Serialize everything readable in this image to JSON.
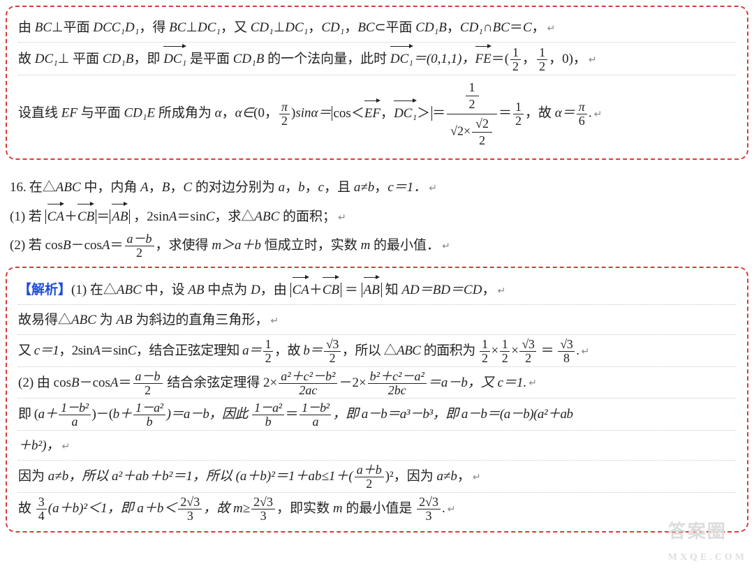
{
  "box1": {
    "line1_a": "由 ",
    "line1_b": "⊥平面 ",
    "line1_c": "，得 ",
    "line1_d": "⊥",
    "line1_e": "，又 ",
    "line1_f": "⊥",
    "line1_g": "，",
    "line1_h": "，",
    "line1_i": "⊂平面 ",
    "line1_j": "，",
    "line1_k": "∩",
    "line1_l": "＝",
    "line1_m": "，",
    "BC": "BC",
    "DCC1D1": "DCC₁D₁",
    "DC1": "DC₁",
    "CD1": "CD₁",
    "CD1B": "CD₁B",
    "C": "C",
    "line2_a": "故 ",
    "line2_b": "⊥ 平面 ",
    "line2_c": "，即 ",
    "line2_d": " 是平面 ",
    "line2_e": " 的一个法向量，此时 ",
    "vec_DC1": "DC₁",
    "eqDC1": "＝(0,1,1)，",
    "vec_FE": "FE",
    "eqFE_open": "＝(",
    "half1_n": "1",
    "half1_d": "2",
    "comma": "，",
    "half2_n": "1",
    "half2_d": "2",
    "eqFE_close": "，0)，",
    "line3_a": "设直线 ",
    "EF": "EF",
    "line3_b": " 与平面 ",
    "CD1E": "CD₁E",
    "line3_c": " 所成角为 ",
    "alpha": "α",
    "line3_d": "，",
    "alpha_in": "α∈",
    "range_open": "(0，",
    "pi_n": "π",
    "pi_d": "2",
    "range_close": ")",
    "sina_eq": "sinα＝",
    "cos_open": "cos＜",
    "vec_EF": "EF",
    "cos_mid": "，",
    "cos_close": "＞",
    "eq1": "＝",
    "bigfrac_num_n": "1",
    "bigfrac_num_d": "2",
    "bigfrac_den_a": "√2×",
    "bigfrac_den_sn": "√2",
    "bigfrac_den_sd": "2",
    "eq2": "＝",
    "res_n": "1",
    "res_d": "2",
    "line3_e": "，故 ",
    "alpha_eq": "α＝",
    "pi6_n": "π",
    "pi6_d": "6",
    "dot": "."
  },
  "problem": {
    "num": "16.",
    "p1": "在△",
    "ABC": "ABC",
    "p2": " 中，内角 ",
    "A": "A",
    "B": "B",
    "Cc": "C",
    "p3": "，",
    "p4": "，",
    "p5": " 的对边分别为 ",
    "a": "a",
    "b": "b",
    "c": "c",
    "p6": "，",
    "p7": "，",
    "p8": "，且 ",
    "aneb": "a≠b",
    "p9": "，",
    "ceq1": "c＝1．",
    "q1_tag": "(1) 若 ",
    "vec_CA": "CA",
    "plus": "＋",
    "vec_CB": "CB",
    "eqsym": "＝",
    "vec_AB": "AB",
    "q1_mid": " ，2sin",
    "q1_mid2": "＝sin",
    "q1_end": "，求△",
    "q1_end2": " 的面积；",
    "q2_tag": "(2) 若 cos",
    "q2_minus": "－cos",
    "q2_eq": "＝",
    "q2_frac_n": "a－b",
    "q2_frac_d": "2",
    "q2_mid": "，求使得 ",
    "q2_mgab": "m＞a＋b",
    "q2_end": " 恒成立时，实数 ",
    "m": "m",
    "q2_end2": " 的最小值．"
  },
  "box2": {
    "tag": "【解析】",
    "l1_a": "(1) 在△",
    "ABC": "ABC",
    "l1_b": " 中，设 ",
    "AB": "AB",
    "l1_c": " 中点为 ",
    "D": "D",
    "l1_d": "，由 ",
    "vec_CA": "CA",
    "plus": "＋",
    "vec_CB": "CB",
    "eqsym": " ＝ ",
    "vec_AB": "AB",
    "l1_e": " 知 ",
    "ADBDCD": "AD＝BD＝CD",
    "l1_f": "，",
    "l2_a": "故易得△",
    "l2_b": " 为 ",
    "l2_c": " 为斜边的直角三角形，",
    "l3_a": "又 ",
    "c1": "c＝1",
    "l3_b": "，2sin",
    "A": "A",
    "l3_c": "＝sin",
    "C": "C",
    "l3_d": "，结合正弦定理知 ",
    "a_eq": "a＝",
    "half_n": "1",
    "half_d": "2",
    "l3_e": "，故 ",
    "b_eq": "b＝",
    "s3_n": "√3",
    "s3_d": "2",
    "l3_f": "，所以 △",
    "l3_g": " 的面积为 ",
    "times": "×",
    "s38_n": "√3",
    "s38_d": "8",
    "dot": ".",
    "l4_a": "(2) 由 cos",
    "B": "B",
    "l4_b": "－cos",
    "l4_c": "＝",
    "ab2_n": "a－b",
    "ab2_d": "2",
    "l4_d": " 结合余弦定理得 2×",
    "f1_n": "a²＋c²－b²",
    "f1_d": "2ac",
    "l4_e": "－2×",
    "f2_n": "b²＋c²－a²",
    "f2_d": "2bc",
    "l4_f": "＝a－b，又 c＝1.",
    "l5_a": "即 (",
    "l5_b": "a＋",
    "f3_n": "1－b²",
    "f3_d": "a",
    "l5_c": ")－(",
    "l5_d": "b＋",
    "f4_n": "1－a²",
    "f4_d": "b",
    "l5_e": ")＝a－b，因此 ",
    "f5_n": "1－a²",
    "f5_d": "b",
    "l5_eq": "＝",
    "f6_n": "1－b²",
    "f6_d": "a",
    "l5_f": "，即 a－b＝a³－b³，即 a－b＝(a－b)(a²＋ab",
    "l6_a": "＋b²)，",
    "l7_a": "因为 ",
    "aneb": "a≠b",
    "l7_b": "，所以 a²＋ab＋b²＝1，所以 (a＋b)²＝1＋ab≤1＋(",
    "f7_n": "a＋b",
    "f7_d": "2",
    "l7_c": ")²，因为 ",
    "l7_d": "，",
    "l8_a": "故 ",
    "f8_n": "3",
    "f8_d": "4",
    "l8_b": "(a＋b)²＜1，即 a＋b＜",
    "f9_n": "2√3",
    "f9_d": "3",
    "l8_c": "，故 m≥",
    "l8_d": "，即实数 ",
    "m": "m",
    "l8_e": " 的最小值是 ",
    "l8_f": "."
  },
  "watermark": {
    "t1": "答案圈",
    "t2": "MXQE.COM"
  },
  "ret": "↵"
}
